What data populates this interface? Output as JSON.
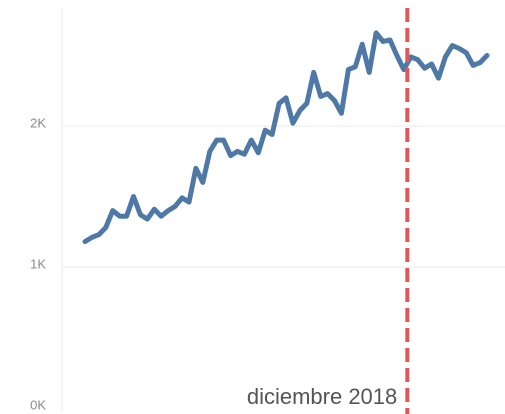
{
  "chart_data": {
    "type": "line",
    "color": "#4e79a7",
    "values": [
      1180,
      1210,
      1230,
      1280,
      1400,
      1360,
      1360,
      1500,
      1370,
      1340,
      1410,
      1360,
      1400,
      1430,
      1490,
      1460,
      1700,
      1600,
      1820,
      1900,
      1900,
      1790,
      1820,
      1800,
      1900,
      1810,
      1970,
      1940,
      2160,
      2200,
      2020,
      2110,
      2160,
      2380,
      2210,
      2230,
      2180,
      2090,
      2400,
      2420,
      2580,
      2380,
      2660,
      2600,
      2610,
      2500,
      2400,
      2490,
      2470,
      2410,
      2440,
      2340,
      2490,
      2570,
      2550,
      2520,
      2430,
      2450,
      2500
    ],
    "ylim": [
      0,
      2850
    ],
    "yticks": [
      {
        "value": 0,
        "label": "0K"
      },
      {
        "value": 1000,
        "label": "1K"
      },
      {
        "value": 2000,
        "label": "2K"
      }
    ],
    "grid": true,
    "reference_line": {
      "label": "diciembre 2018",
      "index": 46.5,
      "color": "#e15759"
    }
  }
}
